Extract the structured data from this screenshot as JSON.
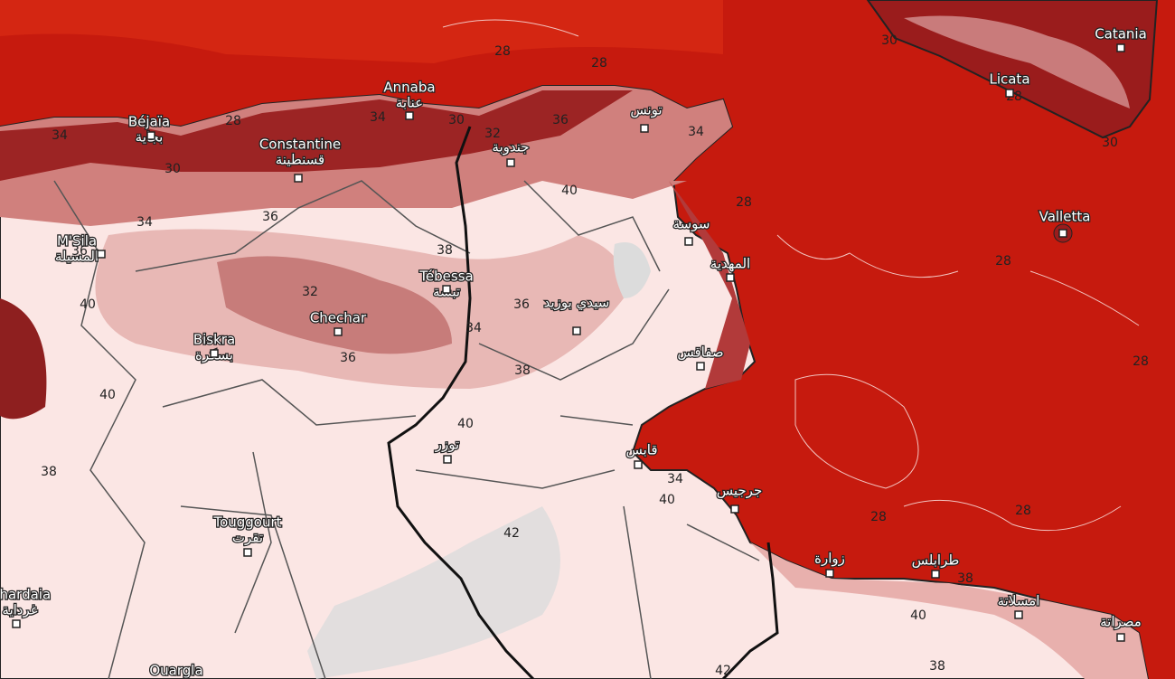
{
  "map": {
    "cities": [
      {
        "name": "Béjaïa",
        "name_ar": "بجاية"
      },
      {
        "name": "Annaba",
        "name_ar": "عنابة"
      },
      {
        "name": "Constantine",
        "name_ar": "قسنطينة"
      },
      {
        "name_ar": "تونس"
      },
      {
        "name": "Catania"
      },
      {
        "name": "Licata"
      },
      {
        "name": "Valletta"
      },
      {
        "name": "M'Sila",
        "name_ar": "المسيلة"
      },
      {
        "name": "Tébessa",
        "name_ar": "تبسة"
      },
      {
        "name": "Chechar"
      },
      {
        "name": "Biskra",
        "name_ar": "بسكرة"
      },
      {
        "name_ar": "جندوبة"
      },
      {
        "name_ar": "سوسة"
      },
      {
        "name_ar": "المهدية"
      },
      {
        "name_ar": "سيدي بوزيد"
      },
      {
        "name_ar": "صفاقس"
      },
      {
        "name_ar": "قابس"
      },
      {
        "name_ar": "توزر"
      },
      {
        "name": "Touggourt",
        "name_ar": "تقرت"
      },
      {
        "name": "Ghardaia",
        "name_ar": "غرداية"
      },
      {
        "name": "Ouargla"
      },
      {
        "name_ar": "جرجيس"
      },
      {
        "name_ar": "زوارة"
      },
      {
        "name_ar": "طرابلس"
      },
      {
        "name_ar": "امسلاتة"
      },
      {
        "name_ar": "مصراتة"
      }
    ],
    "contour_labels": [
      28,
      28,
      28,
      28,
      28,
      28,
      28,
      28,
      28,
      30,
      30,
      30,
      30,
      34,
      34,
      34,
      34,
      34,
      34,
      36,
      36,
      36,
      36,
      36,
      38,
      38,
      38,
      38,
      38,
      40,
      40,
      40,
      40,
      40,
      40,
      42,
      42,
      32,
      32
    ]
  }
}
